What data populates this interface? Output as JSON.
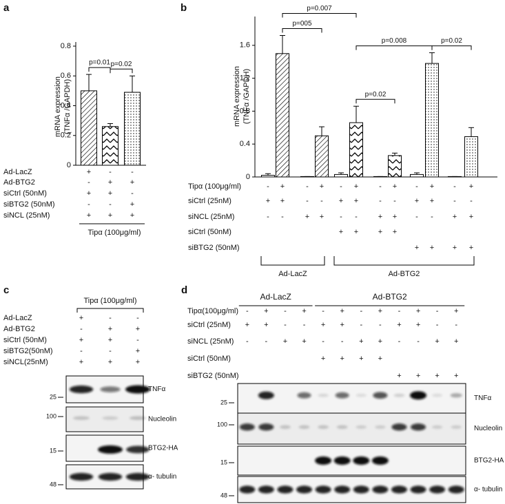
{
  "chart_data": [
    {
      "type": "bar",
      "panel_label": "a",
      "ylabel": [
        "mRNA expression",
        "(TNFα /GAPDH)"
      ],
      "categories": [
        null,
        null,
        null
      ],
      "values": [
        0.5,
        0.26,
        0.49
      ],
      "errors": [
        0.11,
        0.02,
        0.11
      ],
      "patterns": [
        "hatch",
        "zigzag",
        "dots"
      ],
      "ylim": [
        0,
        0.8
      ],
      "yticks": [
        0,
        0.2,
        0.4,
        0.6,
        0.8
      ],
      "comparisons": [
        {
          "label": "p=0.01",
          "bars": [
            0,
            1
          ]
        },
        {
          "label": "p=0.02",
          "bars": [
            1,
            2
          ]
        }
      ],
      "conditions": [
        {
          "label": "Ad-LacZ",
          "signs": [
            "+",
            "-",
            "-"
          ]
        },
        {
          "label": "Ad-BTG2",
          "signs": [
            "-",
            "+",
            "+"
          ]
        },
        {
          "label": "siCtrl (50nM)",
          "signs": [
            "+",
            "+",
            "-"
          ]
        },
        {
          "label": "siBTG2 (50nM)",
          "signs": [
            "-",
            "-",
            "+"
          ]
        },
        {
          "label": "siNCL (25nM)",
          "signs": [
            "+",
            "+",
            "+"
          ]
        }
      ],
      "footer": "Tipα (100μg/ml)"
    },
    {
      "type": "bar",
      "panel_label": "b",
      "ylabel": [
        "mRNA expression",
        "(TNFα /GAPDH)"
      ],
      "categories": [
        null,
        null,
        null,
        null,
        null,
        null,
        null,
        null,
        null,
        null,
        null,
        null
      ],
      "values": [
        0.02,
        1.5,
        0.005,
        0.5,
        0.03,
        0.66,
        0.005,
        0.26,
        0.03,
        1.38,
        0.005,
        0.49
      ],
      "errors": [
        0.02,
        0.22,
        0,
        0.11,
        0.02,
        0.2,
        0,
        0.03,
        0.02,
        0.13,
        0,
        0.11
      ],
      "patterns": [
        "plain",
        "hatch",
        "plain",
        "hatch",
        "plain",
        "zigzag",
        "plain",
        "zigzag",
        "plain",
        "dots",
        "plain",
        "dots"
      ],
      "ylim": [
        0,
        1.9
      ],
      "yticks": [
        0,
        0.4,
        0.8,
        1.2,
        1.6
      ],
      "comparisons": [
        {
          "label": "p=005",
          "bars": [
            1,
            3
          ]
        },
        {
          "label": "p=0.007",
          "bars": [
            1,
            5
          ]
        },
        {
          "label": "p=0.02",
          "bars": [
            5,
            7
          ]
        },
        {
          "label": "p=0.008",
          "bars": [
            5,
            9
          ]
        },
        {
          "label": "p=0.02",
          "bars": [
            9,
            11
          ]
        }
      ],
      "conditions": [
        {
          "label": "Tipα (100μg/ml)",
          "signs": [
            "-",
            "+",
            "-",
            "+",
            "-",
            "+",
            "-",
            "+",
            "-",
            "+",
            "-",
            "+"
          ]
        },
        {
          "label": "siCtrl (25nM)",
          "signs": [
            "+",
            "+",
            "-",
            "-",
            "+",
            "+",
            "-",
            "-",
            "+",
            "+",
            "-",
            "-"
          ]
        },
        {
          "label": "siNCL (25nM)",
          "signs": [
            "-",
            "-",
            "+",
            "+",
            "-",
            "-",
            "+",
            "+",
            "-",
            "-",
            "+",
            "+"
          ]
        },
        {
          "label": "siCtrl (50nM)",
          "signs": [
            null,
            null,
            null,
            null,
            "+",
            "+",
            "+",
            "+",
            null,
            null,
            null,
            null
          ]
        },
        {
          "label": "siBTG2 (50nM)",
          "signs": [
            null,
            null,
            null,
            null,
            null,
            null,
            null,
            null,
            "+",
            "+",
            "+",
            "+"
          ]
        }
      ],
      "groups": [
        {
          "label": "Ad-LacZ",
          "bars": [
            0,
            3
          ]
        },
        {
          "label": "Ad-BTG2",
          "bars": [
            4,
            11
          ]
        }
      ]
    }
  ],
  "blots": [
    {
      "panel_label": "c",
      "treatment": "Tipα (100μg/ml)",
      "conditions": [
        {
          "label": "Ad-LacZ",
          "signs": [
            "+",
            "-",
            "-"
          ]
        },
        {
          "label": "Ad-BTG2",
          "signs": [
            "-",
            "+",
            "+"
          ]
        },
        {
          "label": "siCtrl (50nM)",
          "signs": [
            "+",
            "+",
            "-"
          ]
        },
        {
          "label": "siBTG2(50nM)",
          "signs": [
            "-",
            "-",
            "+"
          ]
        },
        {
          "label": "siNCL(25nM)",
          "signs": [
            "+",
            "+",
            "+"
          ]
        }
      ],
      "rows": [
        {
          "label": "TNFα",
          "marker": 25
        },
        {
          "label": "Nucleolin",
          "marker": 100
        },
        {
          "label": "BTG2-HA",
          "marker": 15
        },
        {
          "label": "α- tubulin",
          "marker": 48
        }
      ]
    },
    {
      "panel_label": "d",
      "groups": [
        {
          "label": "Ad-LacZ",
          "lanes": [
            0,
            3
          ]
        },
        {
          "label": "Ad-BTG2",
          "lanes": [
            4,
            11
          ]
        }
      ],
      "conditions": [
        {
          "label": "Tipα(100μg/ml)",
          "signs": [
            "-",
            "+",
            "-",
            "+",
            "-",
            "+",
            "-",
            "+",
            "-",
            "+",
            "-",
            "+"
          ]
        },
        {
          "label": "siCtrl (25nM)",
          "signs": [
            "+",
            "+",
            "-",
            "-",
            "+",
            "+",
            "-",
            "-",
            "+",
            "+",
            "-",
            "-"
          ]
        },
        {
          "label": "siNCL (25nM)",
          "signs": [
            "-",
            "-",
            "+",
            "+",
            "-",
            "-",
            "+",
            "+",
            "-",
            "-",
            "+",
            "+"
          ]
        },
        {
          "label": "siCtrl (50nM)",
          "signs": [
            null,
            null,
            null,
            null,
            "+",
            "+",
            "+",
            "+",
            null,
            null,
            null,
            null
          ]
        },
        {
          "label": "siBTG2 (50nM)",
          "signs": [
            null,
            null,
            null,
            null,
            null,
            null,
            null,
            null,
            "+",
            "+",
            "+",
            "+"
          ]
        }
      ],
      "rows": [
        {
          "label": "TNFα",
          "marker": 25
        },
        {
          "label": "Nucleolin",
          "marker": 100
        },
        {
          "label": "BTG2-HA",
          "marker": 15
        },
        {
          "label": "α- tubulin",
          "marker": 48
        }
      ]
    }
  ]
}
